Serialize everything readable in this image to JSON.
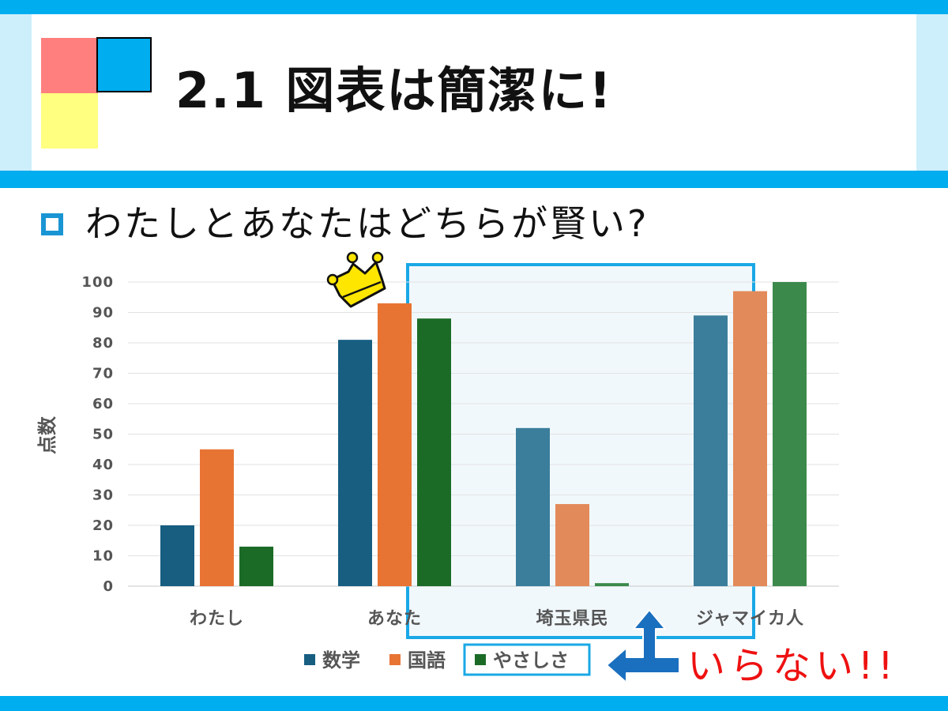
{
  "slide": {
    "title": "2.1 図表は簡潔に!",
    "question": "わたしとあなたはどちらが賢い?",
    "remark": "いらない!!"
  },
  "colors": {
    "accent": "#00adef",
    "light_accent": "#cdeefb",
    "logo_red": "#ff7f7f",
    "logo_yellow": "#ffff80",
    "highlight_border": "#1aa8e6",
    "highlight_fill": "#f1f8fc",
    "arrow": "#1a6fbf",
    "remark": "#ee1111",
    "crown": "#ffe600"
  },
  "icons": [
    "crown-icon",
    "square-bullet-icon",
    "t-arrow-icon"
  ],
  "chart_data": {
    "type": "bar",
    "categories": [
      "わたし",
      "あなた",
      "埼玉県民",
      "ジャマイカ人"
    ],
    "series": [
      {
        "name": "数学",
        "values": [
          20,
          81,
          52,
          89
        ],
        "color": "#175e81",
        "faded_color": "#3b7e9b"
      },
      {
        "name": "国語",
        "values": [
          45,
          93,
          27,
          97
        ],
        "color": "#e87434",
        "faded_color": "#e38a5a"
      },
      {
        "name": "やさしさ",
        "values": [
          13,
          88,
          1,
          100
        ],
        "color": "#1b6b27",
        "faded_color": "#3c8a4b"
      }
    ],
    "y_ticks": [
      "0",
      "10",
      "20",
      "30",
      "40",
      "50",
      "60",
      "70",
      "80",
      "90",
      "100"
    ],
    "xlabel": "",
    "ylabel": "点数",
    "ylim": [
      0,
      100
    ],
    "grid": true,
    "legend": "bottom",
    "highlight_categories": [
      "埼玉県民",
      "ジャマイカ人"
    ],
    "highlight_legend": "やさしさ",
    "annotation": "crown above あなた"
  }
}
